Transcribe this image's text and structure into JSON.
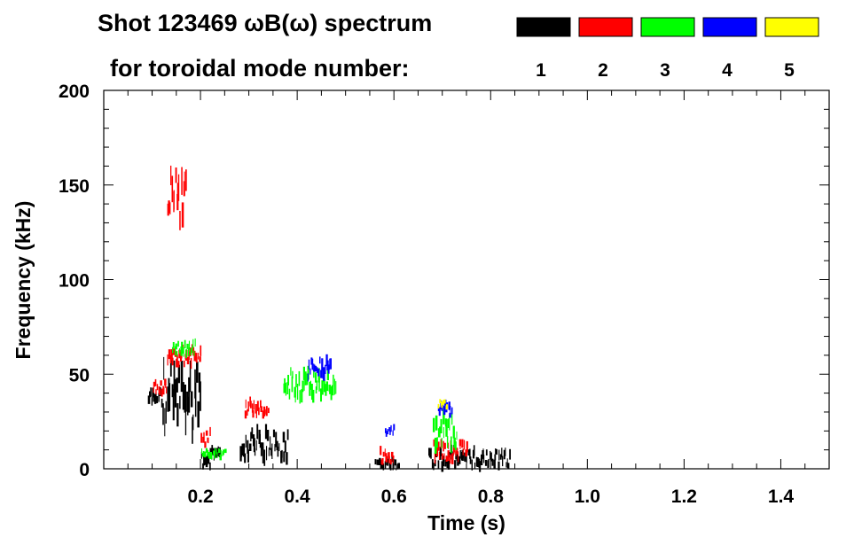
{
  "chart_data": {
    "type": "heatmap",
    "title": "Shot 123469 ωB(ω) spectrum",
    "subtitle": "for toroidal mode number:",
    "xlabel": "Time (s)",
    "ylabel": "Frequency (kHz)",
    "xlim": [
      0.0,
      1.5
    ],
    "ylim": [
      0,
      200
    ],
    "x_ticks": [
      0.2,
      0.4,
      0.6,
      0.8,
      1.0,
      1.2,
      1.4
    ],
    "x_tick_labels": [
      "0.2",
      "0.4",
      "0.6",
      "0.8",
      "1.0",
      "1.2",
      "1.4"
    ],
    "y_ticks": [
      0,
      50,
      100,
      150,
      200
    ],
    "y_tick_labels": [
      "0",
      "50",
      "100",
      "150",
      "200"
    ],
    "legend_placement": "top",
    "legend": [
      {
        "label": "1",
        "color": "#000000"
      },
      {
        "label": "2",
        "color": "#ff0000"
      },
      {
        "label": "3",
        "color": "#00ff00"
      },
      {
        "label": "4",
        "color": "#0000ff"
      },
      {
        "label": "5",
        "color": "#ffff00"
      }
    ],
    "series": [
      {
        "mode": 1,
        "color": "#000000",
        "features": [
          {
            "t": [
              0.09,
              0.12
            ],
            "f": [
              34,
              42
            ]
          },
          {
            "t": [
              0.12,
              0.2
            ],
            "f": [
              20,
              55
            ]
          },
          {
            "t": [
              0.2,
              0.24
            ],
            "f": [
              1,
              10
            ]
          },
          {
            "t": [
              0.28,
              0.38
            ],
            "f": [
              5,
              20
            ]
          },
          {
            "t": [
              0.56,
              0.61
            ],
            "f": [
              1,
              6
            ]
          },
          {
            "t": [
              0.67,
              0.84
            ],
            "f": [
              1,
              10
            ]
          }
        ]
      },
      {
        "mode": 2,
        "color": "#ff0000",
        "features": [
          {
            "t": [
              0.13,
              0.17
            ],
            "f": [
              130,
              158
            ]
          },
          {
            "t": [
              0.1,
              0.13
            ],
            "f": [
              40,
              46
            ]
          },
          {
            "t": [
              0.13,
              0.2
            ],
            "f": [
              55,
              64
            ]
          },
          {
            "t": [
              0.2,
              0.22
            ],
            "f": [
              12,
              20
            ]
          },
          {
            "t": [
              0.29,
              0.34
            ],
            "f": [
              28,
              36
            ]
          },
          {
            "t": [
              0.57,
              0.6
            ],
            "f": [
              3,
              10
            ]
          },
          {
            "t": [
              0.68,
              0.75
            ],
            "f": [
              5,
              14
            ]
          }
        ]
      },
      {
        "mode": 3,
        "color": "#00ff00",
        "features": [
          {
            "t": [
              0.37,
              0.48
            ],
            "f": [
              38,
              52
            ]
          },
          {
            "t": [
              0.14,
              0.19
            ],
            "f": [
              60,
              67
            ]
          },
          {
            "t": [
              0.68,
              0.73
            ],
            "f": [
              12,
              28
            ]
          },
          {
            "t": [
              0.2,
              0.25
            ],
            "f": [
              6,
              10
            ]
          }
        ]
      },
      {
        "mode": 4,
        "color": "#0000ff",
        "features": [
          {
            "t": [
              0.42,
              0.47
            ],
            "f": [
              48,
              58
            ]
          },
          {
            "t": [
              0.69,
              0.72
            ],
            "f": [
              28,
              35
            ]
          },
          {
            "t": [
              0.58,
              0.6
            ],
            "f": [
              18,
              22
            ]
          }
        ]
      },
      {
        "mode": 5,
        "color": "#ffff00",
        "features": [
          {
            "t": [
              0.69,
              0.71
            ],
            "f": [
              32,
              36
            ]
          }
        ]
      }
    ]
  }
}
